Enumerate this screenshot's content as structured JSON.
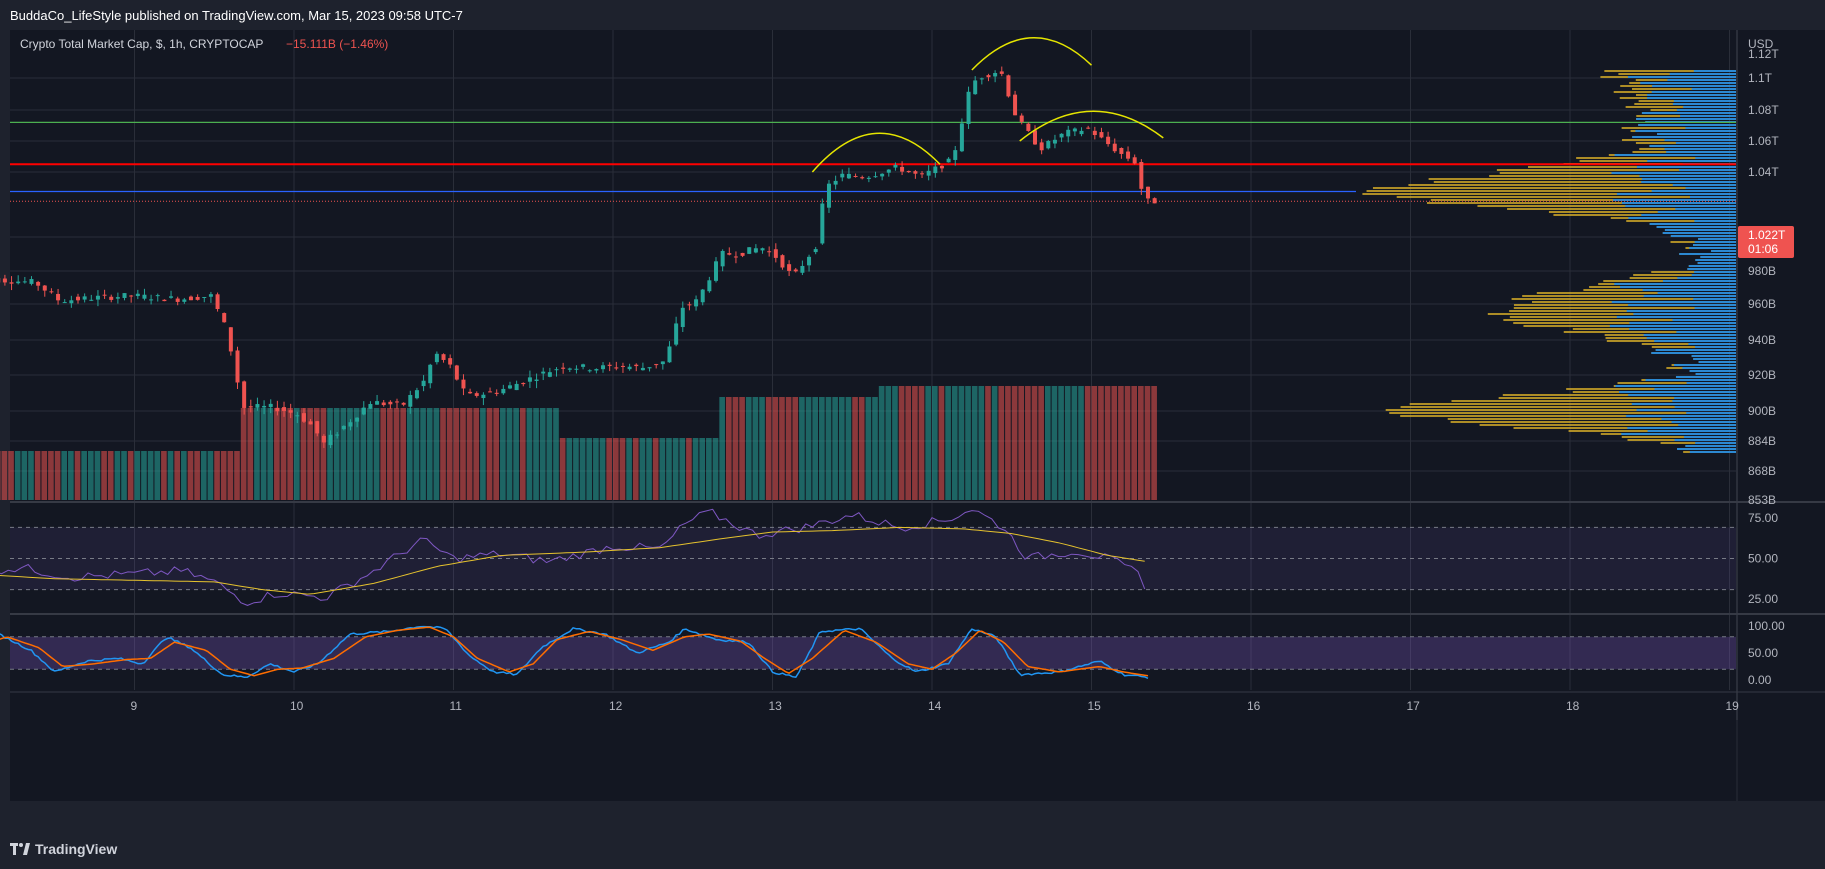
{
  "header": {
    "published_by": "BuddaCo_LifeStyle published on TradingView.com, Mar 15, 2023 09:58 UTC-7"
  },
  "legend": {
    "symbol": "Crypto Total Market Cap, $, 1h, CRYPTOCAP",
    "change": "−15.111B (−1.46%)"
  },
  "footer": {
    "brand": "TradingView"
  },
  "colors": {
    "bg": "#131722",
    "panel": "#1e222d",
    "up": "#26a69a",
    "down": "#ef5350",
    "hline_green": "#4caf50",
    "hline_red": "#ff0000",
    "hline_blue": "#2962ff",
    "arc": "#e5e500",
    "rsi": "#7e57c2",
    "rsi_ma": "#e5c22e",
    "stoch_k": "#2196f3",
    "stoch_d": "#ff6d00",
    "vp_blue": "#1e88e5",
    "vp_gold": "#c9a227"
  },
  "chart_data": [
    {
      "type": "candlestick",
      "title": "Crypto Total Market Cap, $, 1h, CRYPTOCAP",
      "currency": "USD",
      "x_labels": [
        "9",
        "10",
        "11",
        "12",
        "13",
        "14",
        "15",
        "16",
        "17",
        "18",
        "19"
      ],
      "y_ticks": [
        "1.12T",
        "1.1T",
        "1.08T",
        "1.06T",
        "1.04T",
        "1T",
        "980B",
        "960B",
        "940B",
        "920B",
        "900B",
        "884B",
        "868B",
        "853B"
      ],
      "last_price_label": "1.022T",
      "countdown": "01:06",
      "ohlc_path_B": [
        [
          8.0,
          976
        ],
        [
          8.4,
          973
        ],
        [
          8.55,
          962
        ],
        [
          8.8,
          964
        ],
        [
          9.0,
          965
        ],
        [
          9.3,
          963
        ],
        [
          9.5,
          965
        ],
        [
          9.6,
          945
        ],
        [
          9.7,
          902
        ],
        [
          9.9,
          902
        ],
        [
          10.05,
          898
        ],
        [
          10.15,
          891
        ],
        [
          10.2,
          882
        ],
        [
          10.35,
          893
        ],
        [
          10.5,
          905
        ],
        [
          10.7,
          903
        ],
        [
          10.85,
          918
        ],
        [
          10.9,
          933
        ],
        [
          11.0,
          925
        ],
        [
          11.1,
          908
        ],
        [
          11.3,
          911
        ],
        [
          11.5,
          918
        ],
        [
          11.7,
          925
        ],
        [
          11.9,
          924
        ],
        [
          12.1,
          925
        ],
        [
          12.2,
          924
        ],
        [
          12.35,
          928
        ],
        [
          12.45,
          958
        ],
        [
          12.55,
          962
        ],
        [
          12.7,
          990
        ],
        [
          12.8,
          990
        ],
        [
          12.95,
          994
        ],
        [
          13.05,
          988
        ],
        [
          13.15,
          976
        ],
        [
          13.3,
          996
        ],
        [
          13.35,
          1030
        ],
        [
          13.45,
          1038
        ],
        [
          13.6,
          1037
        ],
        [
          13.8,
          1043
        ],
        [
          13.95,
          1037
        ],
        [
          14.15,
          1048
        ],
        [
          14.25,
          1090
        ],
        [
          14.3,
          1100
        ],
        [
          14.45,
          1105
        ],
        [
          14.55,
          1075
        ],
        [
          14.7,
          1055
        ],
        [
          14.85,
          1065
        ],
        [
          15.0,
          1068
        ],
        [
          15.1,
          1060
        ],
        [
          15.2,
          1052
        ],
        [
          15.3,
          1046
        ],
        [
          15.35,
          1022
        ]
      ],
      "horizontal_levels_B": [
        1072,
        1045,
        1028
      ],
      "annotations": [
        "left shoulder",
        "head",
        "right shoulder"
      ]
    },
    {
      "type": "line",
      "title": "RSI",
      "y_ticks": [
        "75.00",
        "50.00",
        "25.00"
      ],
      "bands": [
        70,
        50,
        30
      ],
      "series_path": [
        [
          8.0,
          42
        ],
        [
          8.3,
          44
        ],
        [
          8.6,
          38
        ],
        [
          9.0,
          40
        ],
        [
          9.3,
          42
        ],
        [
          9.5,
          35
        ],
        [
          9.7,
          22
        ],
        [
          9.9,
          28
        ],
        [
          10.2,
          25
        ],
        [
          10.5,
          42
        ],
        [
          10.8,
          62
        ],
        [
          11.0,
          50
        ],
        [
          11.3,
          53
        ],
        [
          11.6,
          48
        ],
        [
          12.0,
          58
        ],
        [
          12.3,
          56
        ],
        [
          12.45,
          72
        ],
        [
          12.6,
          80
        ],
        [
          12.9,
          65
        ],
        [
          13.2,
          70
        ],
        [
          13.5,
          78
        ],
        [
          13.8,
          70
        ],
        [
          14.1,
          75
        ],
        [
          14.25,
          82
        ],
        [
          14.45,
          70
        ],
        [
          14.6,
          50
        ],
        [
          14.9,
          55
        ],
        [
          15.1,
          50
        ],
        [
          15.3,
          40
        ],
        [
          15.35,
          30
        ]
      ],
      "ma_path": [
        [
          8.0,
          40
        ],
        [
          8.5,
          37
        ],
        [
          9.0,
          36
        ],
        [
          9.5,
          35
        ],
        [
          9.8,
          30
        ],
        [
          10.1,
          27
        ],
        [
          10.5,
          34
        ],
        [
          10.9,
          45
        ],
        [
          11.3,
          52
        ],
        [
          11.8,
          54
        ],
        [
          12.3,
          57
        ],
        [
          12.7,
          63
        ],
        [
          13.0,
          67
        ],
        [
          13.4,
          68
        ],
        [
          13.8,
          70
        ],
        [
          14.2,
          69
        ],
        [
          14.5,
          66
        ],
        [
          14.8,
          60
        ],
        [
          15.1,
          52
        ],
        [
          15.35,
          48
        ]
      ]
    },
    {
      "type": "line",
      "title": "Stochastic",
      "y_ticks": [
        "100.00",
        "50.00",
        "0.00"
      ],
      "bands": [
        80,
        20
      ],
      "k_path": [
        [
          8.0,
          70
        ],
        [
          8.15,
          85
        ],
        [
          8.35,
          55
        ],
        [
          8.5,
          15
        ],
        [
          8.7,
          35
        ],
        [
          8.9,
          40
        ],
        [
          9.05,
          30
        ],
        [
          9.2,
          80
        ],
        [
          9.35,
          60
        ],
        [
          9.55,
          10
        ],
        [
          9.7,
          5
        ],
        [
          9.85,
          30
        ],
        [
          10.0,
          15
        ],
        [
          10.15,
          30
        ],
        [
          10.35,
          85
        ],
        [
          10.6,
          90
        ],
        [
          10.8,
          100
        ],
        [
          10.95,
          95
        ],
        [
          11.1,
          45
        ],
        [
          11.25,
          15
        ],
        [
          11.4,
          10
        ],
        [
          11.55,
          60
        ],
        [
          11.75,
          95
        ],
        [
          11.95,
          85
        ],
        [
          12.15,
          50
        ],
        [
          12.35,
          70
        ],
        [
          12.45,
          95
        ],
        [
          12.65,
          75
        ],
        [
          12.85,
          70
        ],
        [
          13.0,
          15
        ],
        [
          13.15,
          5
        ],
        [
          13.3,
          90
        ],
        [
          13.55,
          95
        ],
        [
          13.75,
          40
        ],
        [
          13.9,
          15
        ],
        [
          14.1,
          30
        ],
        [
          14.25,
          95
        ],
        [
          14.4,
          80
        ],
        [
          14.55,
          10
        ],
        [
          14.8,
          15
        ],
        [
          15.05,
          35
        ],
        [
          15.2,
          10
        ],
        [
          15.35,
          5
        ]
      ],
      "d_path": [
        [
          8.0,
          60
        ],
        [
          8.2,
          80
        ],
        [
          8.4,
          60
        ],
        [
          8.55,
          25
        ],
        [
          8.75,
          30
        ],
        [
          8.95,
          38
        ],
        [
          9.1,
          40
        ],
        [
          9.25,
          70
        ],
        [
          9.45,
          55
        ],
        [
          9.6,
          20
        ],
        [
          9.75,
          8
        ],
        [
          9.9,
          20
        ],
        [
          10.05,
          22
        ],
        [
          10.25,
          40
        ],
        [
          10.45,
          80
        ],
        [
          10.65,
          92
        ],
        [
          10.85,
          98
        ],
        [
          11.0,
          80
        ],
        [
          11.15,
          40
        ],
        [
          11.35,
          15
        ],
        [
          11.5,
          30
        ],
        [
          11.65,
          75
        ],
        [
          11.85,
          90
        ],
        [
          12.05,
          75
        ],
        [
          12.25,
          55
        ],
        [
          12.45,
          80
        ],
        [
          12.6,
          85
        ],
        [
          12.8,
          72
        ],
        [
          12.95,
          40
        ],
        [
          13.1,
          12
        ],
        [
          13.25,
          40
        ],
        [
          13.45,
          92
        ],
        [
          13.65,
          70
        ],
        [
          13.85,
          30
        ],
        [
          14.0,
          20
        ],
        [
          14.15,
          50
        ],
        [
          14.3,
          92
        ],
        [
          14.45,
          70
        ],
        [
          14.6,
          25
        ],
        [
          14.8,
          15
        ],
        [
          15.05,
          25
        ],
        [
          15.2,
          15
        ],
        [
          15.35,
          8
        ]
      ]
    }
  ]
}
